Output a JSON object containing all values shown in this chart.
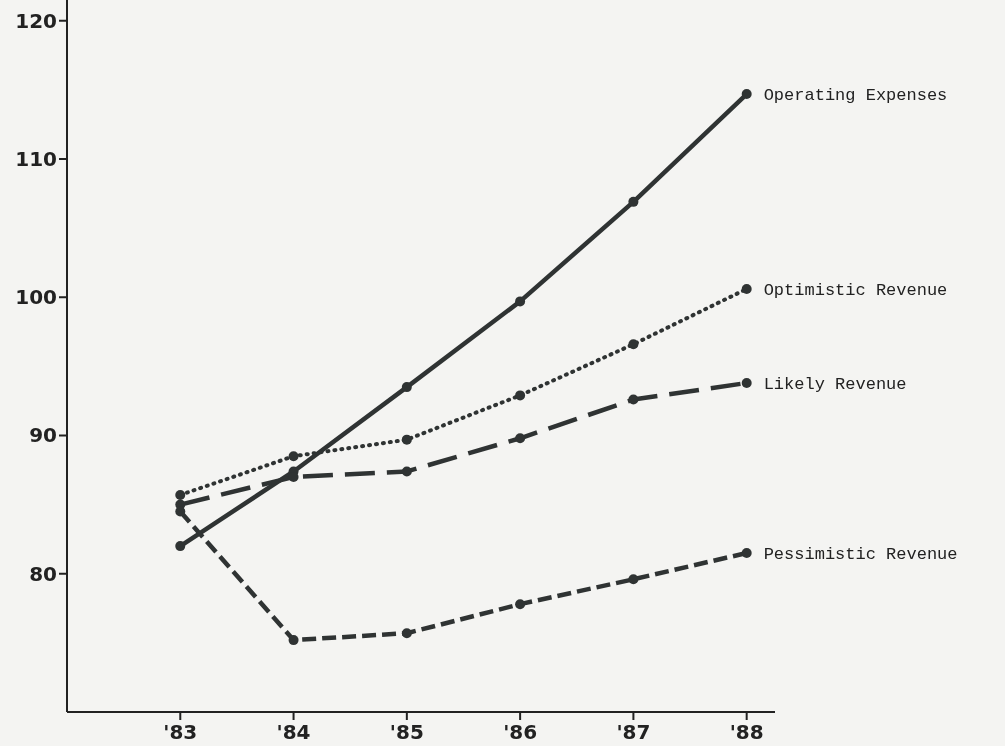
{
  "chart_data": {
    "type": "line",
    "x": [
      1983,
      1984,
      1985,
      1986,
      1987,
      1988
    ],
    "xlim": [
      1982,
      1988.25
    ],
    "xticks": [
      {
        "value": 1983,
        "label": "'83"
      },
      {
        "value": 1984,
        "label": "'84"
      },
      {
        "value": 1985,
        "label": "'85"
      },
      {
        "value": 1986,
        "label": "'86"
      },
      {
        "value": 1987,
        "label": "'87"
      },
      {
        "value": 1988,
        "label": "'88"
      }
    ],
    "ylim": [
      70,
      121.5
    ],
    "yticks": [
      80,
      90,
      100,
      110,
      120
    ],
    "grid": false,
    "legend": false,
    "marker": "circle",
    "series": [
      {
        "name": "Operating Expenses",
        "color": "#2f3333",
        "line_style": "solid",
        "values": [
          82.0,
          87.4,
          93.5,
          99.7,
          106.9,
          114.7
        ]
      },
      {
        "name": "Optimistic Revenue",
        "color": "#2f3333",
        "line_style": "dotted",
        "values": [
          85.7,
          88.5,
          89.7,
          92.9,
          96.6,
          100.6
        ]
      },
      {
        "name": "Likely Revenue",
        "color": "#2f3333",
        "line_style": "longdash",
        "values": [
          85.0,
          87.0,
          87.4,
          89.8,
          92.6,
          93.8
        ]
      },
      {
        "name": "Pessimistic Revenue",
        "color": "#2f3333",
        "line_style": "dashed",
        "values": [
          84.5,
          75.2,
          75.7,
          77.8,
          79.6,
          81.5
        ]
      }
    ]
  }
}
